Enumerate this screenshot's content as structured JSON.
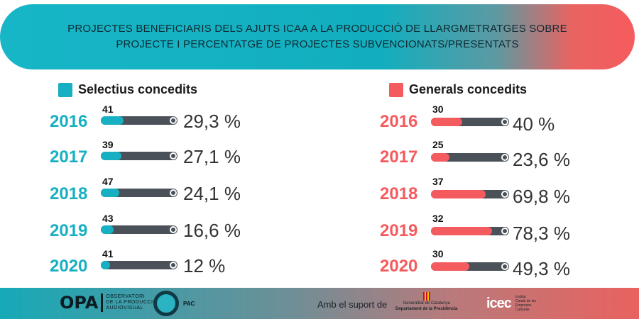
{
  "header": {
    "line1": "PROJECTES BENEFICIARIS DELS AJUTS ICAA A LA PRODUCCIÓ DE LLARGMETRATGES SOBRE",
    "line2": "PROJECTE I PERCENTATGE DE PROJECTES SUBVENCIONATS/PRESENTATS"
  },
  "colors": {
    "selectius": "#17b0c2",
    "generals": "#f45b5e",
    "track": "#4a5159"
  },
  "chart_data": [
    {
      "type": "bar",
      "legend": "Selectius concedits",
      "categories": [
        "2016",
        "2017",
        "2018",
        "2019",
        "2020"
      ],
      "counts": [
        "41",
        "39",
        "47",
        "43",
        "41"
      ],
      "values": [
        29.3,
        27.1,
        24.1,
        16.6,
        12
      ],
      "value_labels": [
        "29,3 %",
        "27,1 %",
        "24,1 %",
        "16,6 %",
        "12 %"
      ],
      "ylim": [
        0,
        100
      ]
    },
    {
      "type": "bar",
      "legend": "Generals concedits",
      "categories": [
        "2016",
        "2017",
        "2018",
        "2019",
        "2020"
      ],
      "counts": [
        "30",
        "25",
        "37",
        "32",
        "30"
      ],
      "values": [
        40,
        23.6,
        69.8,
        78.3,
        49.3
      ],
      "value_labels": [
        "40 %",
        "23,6 %",
        "69,8 %",
        "78,3 %",
        "49,3 %"
      ],
      "ylim": [
        0,
        100
      ]
    }
  ],
  "footer": {
    "opa_main": "OPA",
    "opa_sub": [
      "OBSERVATORI",
      "DE LA PRODUCCIÓ",
      "AUDIOVISUAL"
    ],
    "pac_label": "PAC",
    "support_text": "Amb el suport de",
    "gencat_line1": "Generalitat de Catalunya",
    "gencat_line2": "Departament de la Presidència",
    "icec_label": "icec",
    "icec_sub": [
      "Institut",
      "Català de les",
      "Empreses",
      "Culturals"
    ]
  }
}
